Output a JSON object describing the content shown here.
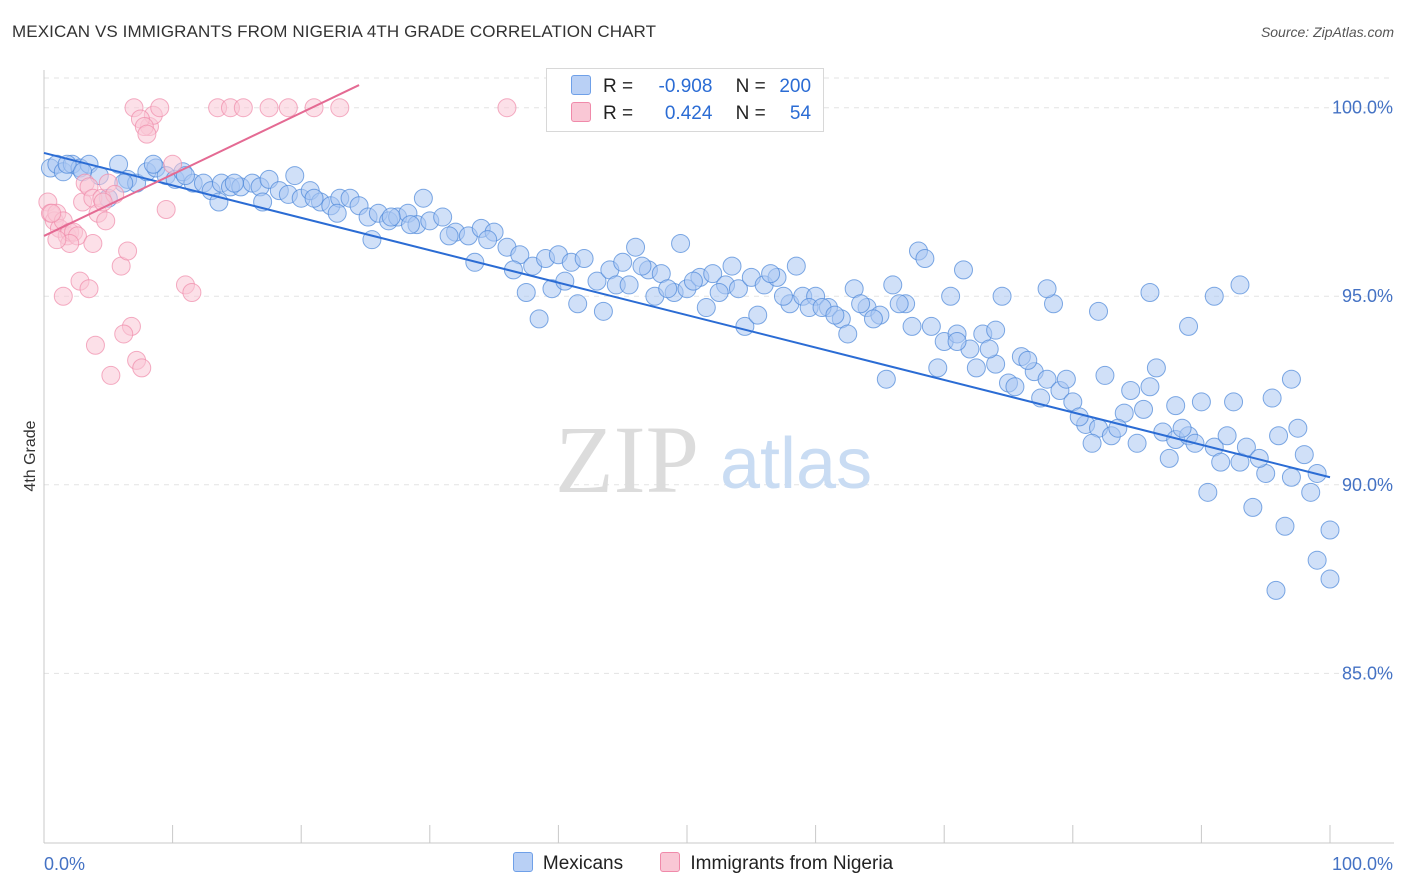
{
  "header": {
    "title": "MEXICAN VS IMMIGRANTS FROM NIGERIA 4TH GRADE CORRELATION CHART",
    "source": "Source: ZipAtlas.com"
  },
  "watermark": {
    "zip": "ZIP",
    "atlas": "atlas"
  },
  "legend": {
    "rows": [
      {
        "r_label": "R =",
        "r_value": "-0.908",
        "n_label": "N =",
        "n_value": "200",
        "color": "#6fa0e8",
        "fill": "#b9d0f5"
      },
      {
        "r_label": "R =",
        "r_value": "0.424",
        "n_label": "N =",
        "n_value": "54",
        "color": "#f08aaa",
        "fill": "#f9c7d5"
      }
    ]
  },
  "bottom_legend": [
    {
      "label": "Mexicans",
      "color": "#6fa0e8",
      "fill": "#b9d0f5"
    },
    {
      "label": "Immigrants from Nigeria",
      "color": "#f08aaa",
      "fill": "#f9c7d5"
    }
  ],
  "chart_data": {
    "type": "scatter",
    "title": "MEXICAN VS IMMIGRANTS FROM NIGERIA 4TH GRADE CORRELATION CHART",
    "xlabel": "",
    "ylabel": "4th Grade",
    "xlim": [
      0,
      100
    ],
    "ylim": [
      80.5,
      101
    ],
    "x_tick_labels": [
      "0.0%",
      "100.0%"
    ],
    "y_ticks": [
      100,
      95,
      90,
      85
    ],
    "y_tick_labels": [
      "100.0%",
      "95.0%",
      "90.0%",
      "85.0%"
    ],
    "grid": true,
    "legend_position": "top-center",
    "series": [
      {
        "name": "Mexicans",
        "color": "#4a86d8",
        "fill": "#aac6f2",
        "trend": {
          "x0": 0,
          "y0": 98.8,
          "x1": 100,
          "y1": 90.2,
          "color": "#2b6cd4"
        },
        "points": [
          [
            0.5,
            98.4
          ],
          [
            1,
            98.5
          ],
          [
            1.5,
            98.3
          ],
          [
            2.2,
            98.5
          ],
          [
            2.8,
            98.4
          ],
          [
            3.5,
            98.5
          ],
          [
            4.3,
            98.2
          ],
          [
            5,
            97.6
          ],
          [
            5.8,
            98.5
          ],
          [
            6.5,
            98.1
          ],
          [
            7.2,
            98
          ],
          [
            8,
            98.3
          ],
          [
            8.7,
            98.4
          ],
          [
            9.5,
            98.2
          ],
          [
            10.2,
            98.1
          ],
          [
            10.8,
            98.3
          ],
          [
            11.6,
            98.0
          ],
          [
            12.4,
            98.0
          ],
          [
            13,
            97.8
          ],
          [
            13.8,
            98.0
          ],
          [
            14.5,
            97.9
          ],
          [
            15.3,
            97.9
          ],
          [
            16.2,
            98.0
          ],
          [
            16.8,
            97.9
          ],
          [
            17.5,
            98.1
          ],
          [
            18.3,
            97.8
          ],
          [
            19,
            97.7
          ],
          [
            20,
            97.6
          ],
          [
            20.7,
            97.8
          ],
          [
            21.5,
            97.5
          ],
          [
            22.3,
            97.4
          ],
          [
            23,
            97.6
          ],
          [
            23.8,
            97.6
          ],
          [
            24.5,
            97.4
          ],
          [
            25.2,
            97.1
          ],
          [
            26,
            97.2
          ],
          [
            26.8,
            97.0
          ],
          [
            27.5,
            97.1
          ],
          [
            28.3,
            97.2
          ],
          [
            29.0,
            96.9
          ],
          [
            30.0,
            97.0
          ],
          [
            31.0,
            97.1
          ],
          [
            32.0,
            96.7
          ],
          [
            33.0,
            96.6
          ],
          [
            34.0,
            96.8
          ],
          [
            35.0,
            96.7
          ],
          [
            36.0,
            96.3
          ],
          [
            37.0,
            96.1
          ],
          [
            38.0,
            95.8
          ],
          [
            39.0,
            96.0
          ],
          [
            40.0,
            96.1
          ],
          [
            41.0,
            95.9
          ],
          [
            42.0,
            96.0
          ],
          [
            43.0,
            95.4
          ],
          [
            44.0,
            95.7
          ],
          [
            45.0,
            95.9
          ],
          [
            46.0,
            96.3
          ],
          [
            47.0,
            95.7
          ],
          [
            48.0,
            95.6
          ],
          [
            49.0,
            95.1
          ],
          [
            50.0,
            95.2
          ],
          [
            51.0,
            95.5
          ],
          [
            52.0,
            95.6
          ],
          [
            53.0,
            95.3
          ],
          [
            54.0,
            95.2
          ],
          [
            55.0,
            95.5
          ],
          [
            56.0,
            95.3
          ],
          [
            57.0,
            95.5
          ],
          [
            58.0,
            94.8
          ],
          [
            59.0,
            95.0
          ],
          [
            60.0,
            95.0
          ],
          [
            61.0,
            94.7
          ],
          [
            62.0,
            94.4
          ],
          [
            63.0,
            95.2
          ],
          [
            64.0,
            94.7
          ],
          [
            65.0,
            94.5
          ],
          [
            66.0,
            95.3
          ],
          [
            67.0,
            94.8
          ],
          [
            68.0,
            96.2
          ],
          [
            69.0,
            94.2
          ],
          [
            70.0,
            93.8
          ],
          [
            71.0,
            94.0
          ],
          [
            72.0,
            93.6
          ],
          [
            73.0,
            94.0
          ],
          [
            74.0,
            93.2
          ],
          [
            75.0,
            92.7
          ],
          [
            76.0,
            93.4
          ],
          [
            77.0,
            93.0
          ],
          [
            78.0,
            92.8
          ],
          [
            79.0,
            92.5
          ],
          [
            80.0,
            92.2
          ],
          [
            81.0,
            91.6
          ],
          [
            82.0,
            91.5
          ],
          [
            83.0,
            91.3
          ],
          [
            84.0,
            91.9
          ],
          [
            85.0,
            91.1
          ],
          [
            86.0,
            92.6
          ],
          [
            87.0,
            91.4
          ],
          [
            88.0,
            91.2
          ],
          [
            89.0,
            91.3
          ],
          [
            90.0,
            92.2
          ],
          [
            91.0,
            91.0
          ],
          [
            92.0,
            91.3
          ],
          [
            93.0,
            90.6
          ],
          [
            94.0,
            89.4
          ],
          [
            95.0,
            90.3
          ],
          [
            96.0,
            91.3
          ],
          [
            97.0,
            90.2
          ],
          [
            98.0,
            90.8
          ],
          [
            99.0,
            90.3
          ],
          [
            100.0,
            88.8
          ],
          [
            1.8,
            98.5
          ],
          [
            3.0,
            98.3
          ],
          [
            6.2,
            98.0
          ],
          [
            8.5,
            98.5
          ],
          [
            11,
            98.2
          ],
          [
            13.6,
            97.5
          ],
          [
            14.8,
            98.0
          ],
          [
            17,
            97.5
          ],
          [
            19.5,
            98.2
          ],
          [
            21,
            97.6
          ],
          [
            22.8,
            97.2
          ],
          [
            25.5,
            96.5
          ],
          [
            27,
            97.1
          ],
          [
            28.5,
            96.9
          ],
          [
            29.5,
            97.6
          ],
          [
            31.5,
            96.6
          ],
          [
            33.5,
            95.9
          ],
          [
            34.5,
            96.5
          ],
          [
            36.5,
            95.7
          ],
          [
            37.5,
            95.1
          ],
          [
            38.5,
            94.4
          ],
          [
            39.5,
            95.2
          ],
          [
            40.5,
            95.4
          ],
          [
            41.5,
            94.8
          ],
          [
            43.5,
            94.6
          ],
          [
            44.5,
            95.3
          ],
          [
            45.5,
            95.3
          ],
          [
            46.5,
            95.8
          ],
          [
            47.5,
            95.0
          ],
          [
            48.5,
            95.2
          ],
          [
            49.5,
            96.4
          ],
          [
            50.5,
            95.4
          ],
          [
            51.5,
            94.7
          ],
          [
            52.5,
            95.1
          ],
          [
            53.5,
            95.8
          ],
          [
            54.5,
            94.2
          ],
          [
            55.5,
            94.5
          ],
          [
            56.5,
            95.6
          ],
          [
            57.5,
            95.0
          ],
          [
            58.5,
            95.8
          ],
          [
            59.5,
            94.7
          ],
          [
            60.5,
            94.7
          ],
          [
            61.5,
            94.5
          ],
          [
            62.5,
            94.0
          ],
          [
            63.5,
            94.8
          ],
          [
            64.5,
            94.4
          ],
          [
            65.5,
            92.8
          ],
          [
            66.5,
            94.8
          ],
          [
            67.5,
            94.2
          ],
          [
            68.5,
            96.0
          ],
          [
            69.5,
            93.1
          ],
          [
            70.5,
            95.0
          ],
          [
            71.5,
            95.7
          ],
          [
            72.5,
            93.1
          ],
          [
            73.5,
            93.6
          ],
          [
            74.5,
            95.0
          ],
          [
            75.5,
            92.6
          ],
          [
            76.5,
            93.3
          ],
          [
            77.5,
            92.3
          ],
          [
            78.5,
            94.8
          ],
          [
            79.5,
            92.8
          ],
          [
            80.5,
            91.8
          ],
          [
            81.5,
            91.1
          ],
          [
            82.5,
            92.9
          ],
          [
            83.5,
            91.5
          ],
          [
            84.5,
            92.5
          ],
          [
            85.5,
            92.0
          ],
          [
            86.5,
            93.1
          ],
          [
            87.5,
            90.7
          ],
          [
            88.5,
            91.5
          ],
          [
            89.5,
            91.1
          ],
          [
            90.5,
            89.8
          ],
          [
            91.5,
            90.6
          ],
          [
            92.5,
            92.2
          ],
          [
            93.5,
            91.0
          ],
          [
            94.5,
            90.7
          ],
          [
            95.5,
            92.3
          ],
          [
            96.5,
            88.9
          ],
          [
            97.5,
            91.5
          ],
          [
            98.5,
            89.8
          ],
          [
            99.0,
            88.0
          ],
          [
            88.0,
            92.1
          ],
          [
            91.0,
            95.0
          ],
          [
            93.0,
            95.3
          ],
          [
            97.0,
            92.8
          ],
          [
            95.8,
            87.2
          ],
          [
            100.0,
            87.5
          ],
          [
            82.0,
            94.6
          ],
          [
            78.0,
            95.2
          ],
          [
            74.0,
            94.1
          ],
          [
            71.0,
            93.8
          ],
          [
            89.0,
            94.2
          ],
          [
            86.0,
            95.1
          ]
        ]
      },
      {
        "name": "Immigrants from Nigeria",
        "color": "#f08aaa",
        "fill": "#f9c7d5",
        "trend": {
          "x0": 0,
          "y0": 96.6,
          "x1": 24.5,
          "y1": 100.6,
          "color": "#e46a93"
        },
        "points": [
          [
            0.3,
            97.5
          ],
          [
            0.5,
            97.2
          ],
          [
            0.8,
            97.0
          ],
          [
            1.0,
            97.2
          ],
          [
            1.2,
            96.8
          ],
          [
            1.5,
            97.0
          ],
          [
            1.8,
            96.6
          ],
          [
            2.0,
            96.7
          ],
          [
            2.3,
            96.7
          ],
          [
            2.6,
            96.6
          ],
          [
            3.0,
            97.5
          ],
          [
            3.2,
            98.0
          ],
          [
            3.5,
            97.9
          ],
          [
            3.8,
            97.6
          ],
          [
            4.2,
            97.2
          ],
          [
            4.5,
            97.6
          ],
          [
            4.8,
            97.0
          ],
          [
            5.0,
            98.0
          ],
          [
            5.5,
            97.7
          ],
          [
            6.0,
            95.8
          ],
          [
            6.5,
            96.2
          ],
          [
            6.8,
            94.2
          ],
          [
            7.2,
            93.3
          ],
          [
            7.6,
            93.1
          ],
          [
            8.2,
            99.5
          ],
          [
            8.5,
            99.8
          ],
          [
            9.0,
            100.0
          ],
          [
            9.5,
            97.3
          ],
          [
            10.0,
            98.5
          ],
          [
            11.0,
            95.3
          ],
          [
            11.5,
            95.1
          ],
          [
            13.5,
            100.0
          ],
          [
            14.5,
            100.0
          ],
          [
            15.5,
            100.0
          ],
          [
            17.5,
            100.0
          ],
          [
            19.0,
            100.0
          ],
          [
            21.0,
            100.0
          ],
          [
            23.0,
            100.0
          ],
          [
            36.0,
            100.0
          ],
          [
            1.5,
            95.0
          ],
          [
            2.8,
            95.4
          ],
          [
            3.5,
            95.2
          ],
          [
            4.0,
            93.7
          ],
          [
            5.2,
            92.9
          ],
          [
            6.2,
            94.0
          ],
          [
            7.0,
            100.0
          ],
          [
            7.5,
            99.7
          ],
          [
            7.8,
            99.5
          ],
          [
            8.0,
            99.3
          ],
          [
            2.0,
            96.4
          ],
          [
            1.0,
            96.5
          ],
          [
            0.6,
            97.2
          ],
          [
            3.8,
            96.4
          ],
          [
            4.6,
            97.5
          ]
        ]
      }
    ]
  }
}
